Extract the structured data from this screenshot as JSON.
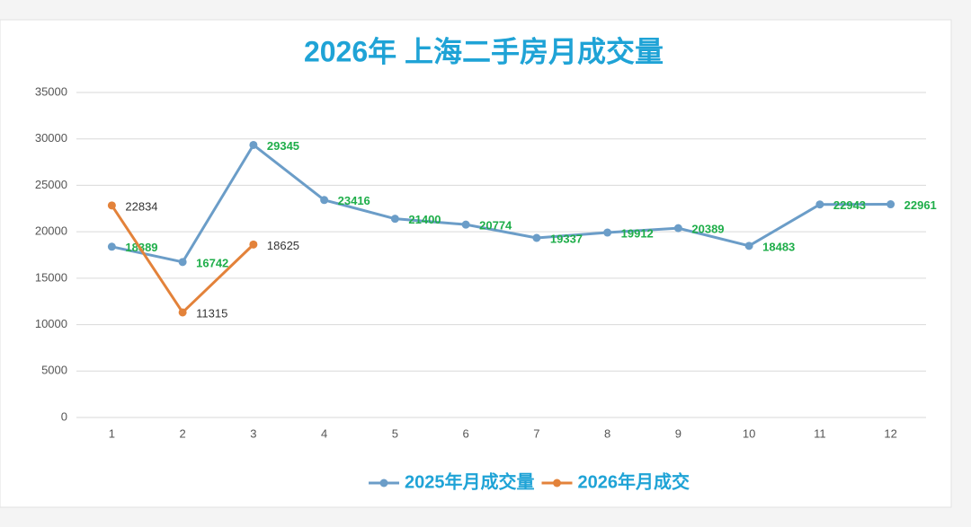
{
  "chart_data": {
    "type": "line",
    "title": "2026年 上海二手房月成交量",
    "categories": [
      "1",
      "2",
      "3",
      "4",
      "5",
      "6",
      "7",
      "8",
      "9",
      "10",
      "11",
      "12"
    ],
    "series": [
      {
        "name": "2025年月成交量",
        "color": "#6b9dc8",
        "label_color": "#1fae4a",
        "values": [
          18389,
          16742,
          29345,
          23416,
          21400,
          20774,
          19337,
          19912,
          20389,
          18483,
          22943,
          22961
        ]
      },
      {
        "name": "2026年月成交",
        "color": "#e3823a",
        "label_color": "#333333",
        "values": [
          22834,
          11315,
          18625,
          null,
          null,
          null,
          null,
          null,
          null,
          null,
          null,
          null
        ]
      }
    ],
    "ylim": [
      0,
      35000
    ],
    "yticks": [
      0,
      5000,
      10000,
      15000,
      20000,
      25000,
      30000,
      35000
    ],
    "grid": true
  }
}
